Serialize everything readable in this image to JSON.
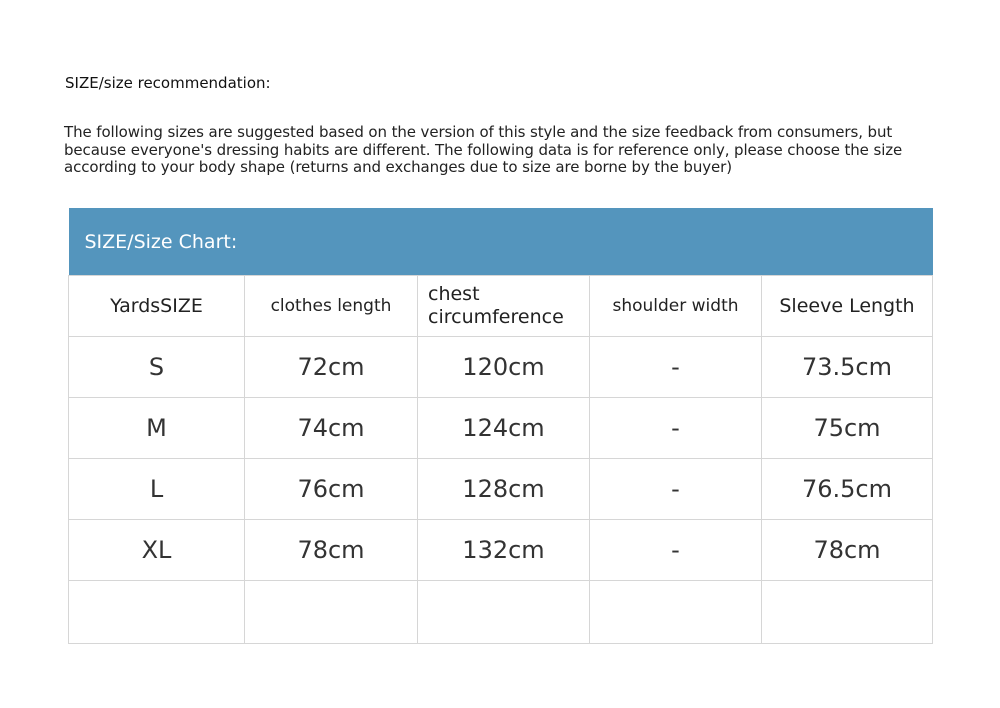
{
  "recommendation_title": "SIZE/size recommendation:",
  "intro_text": "The following sizes are suggested based on the version of this style and the size feedback from consumers, but because everyone's dressing habits are different. The following data is for reference only, please choose the size according to your body shape (returns and exchanges due to size are borne by the buyer)",
  "table": {
    "title": "SIZE/Size Chart:",
    "header_color": "#5495bd",
    "columns": [
      "YardsSIZE",
      "clothes length",
      "chest circumference",
      "shoulder width",
      "Sleeve Length"
    ],
    "rows": [
      [
        "S",
        "72cm",
        "120cm",
        "-",
        "73.5cm"
      ],
      [
        "M",
        "74cm",
        "124cm",
        "-",
        "75cm"
      ],
      [
        "L",
        "76cm",
        "128cm",
        "-",
        "76.5cm"
      ],
      [
        "XL",
        "78cm",
        "132cm",
        "-",
        "78cm"
      ],
      [
        "",
        "",
        "",
        "",
        ""
      ]
    ]
  }
}
